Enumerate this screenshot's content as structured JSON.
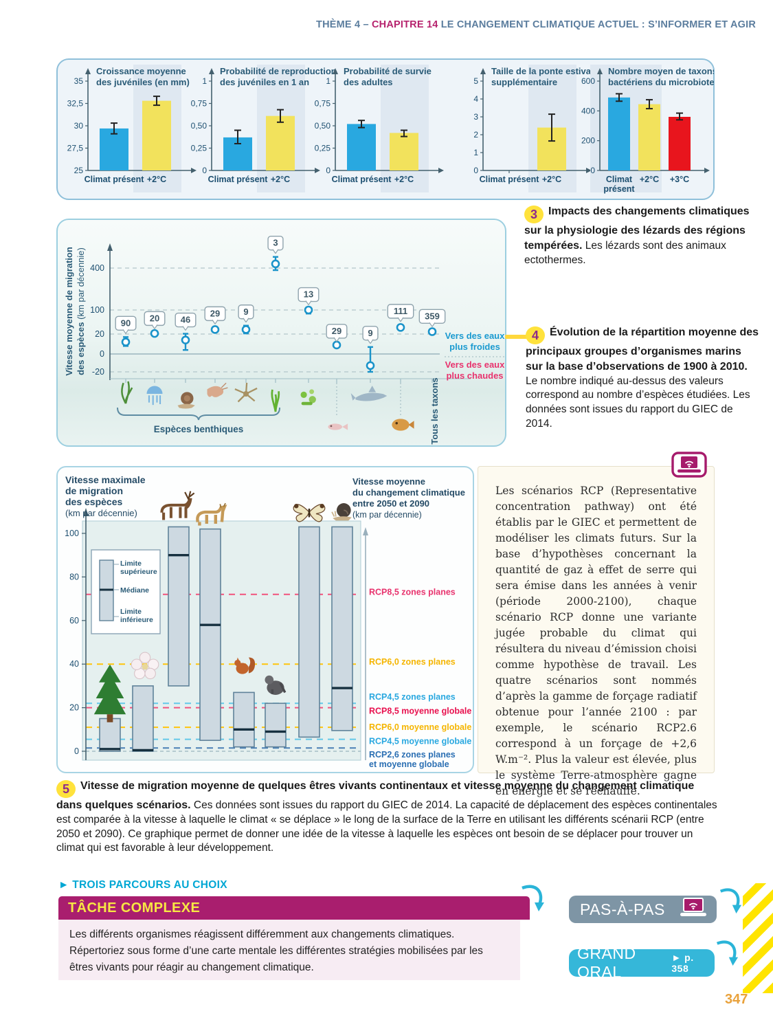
{
  "page": {
    "page_number": "347"
  },
  "header": {
    "theme": "THÈME 4 – ",
    "chapter": "CHAPITRE 14",
    "rest": " LE CHANGEMENT CLIMATIQUE ACTUEL : S’INFORMER ET AGIR"
  },
  "doc3": {
    "number": "3",
    "bold": "Impacts des changements climatiques sur la physiologie des lézards des régions tempérées.",
    "text": " Les lézards sont des animaux ectothermes."
  },
  "doc4": {
    "number": "4",
    "bold": "Évolution de la répartition moyenne des principaux groupes d’organismes marins sur la base d’observations de 1900 à 2010.",
    "text": " Le nombre indiqué au-dessus des valeurs correspond au nombre d’espèces étudiées. Les données sont issues du rapport du GIEC de 2014."
  },
  "rcp_box": {
    "text": "Les scénarios RCP (Representative concentration pathway) ont été établis par le GIEC et permettent de modéliser les climats futurs. Sur la base d’hypothèses concernant la quantité de gaz à effet de serre qui sera émise dans les années à venir (période 2000-2100), chaque scénario RCP donne une variante jugée probable du climat qui résultera du niveau d’émission choisi comme hypothèse de travail. Les quatre scénarios sont nommés d’après la gamme de forçage radiatif obtenue pour l’année 2100 : par exemple, le scénario RCP2.6 correspond à un forçage de +2,6 W.m⁻². Plus la valeur est élevée, plus le système Terre-atmosphère gagne en énergie et se réchauffe."
  },
  "doc5": {
    "number": "5",
    "bold": "Vitesse de migration moyenne de quelques êtres vivants continentaux et vitesse moyenne du changement climatique dans quelques scénarios.",
    "text": " Ces données sont issues du rapport du GIEC de 2014. La capacité de déplacement des espèces continentales est comparée à la vitesse à laquelle le climat « se déplace » le long de la surface de la Terre en utilisant les différents scénarii RCP (entre 2050 et 2090). Ce graphique permet de donner une idée de la vitesse à laquelle les espèces ont besoin de se déplacer pour trouver un climat qui est favorable à leur développement."
  },
  "parcours": {
    "label": "TROIS PARCOURS AU CHOIX",
    "tache": {
      "title": "TÂCHE COMPLEXE",
      "body": "Les différents organismes réagissent différemment aux changements climatiques.\nRépertoriez sous forme d’une carte mentale les différentes stratégies mobilisées par les êtres vivants pour réagir au changement climatique."
    },
    "pas_a_pas": "PAS-À-PAS",
    "grand_oral": "GRAND ORAL",
    "grand_oral_ref": "► p. 358"
  },
  "chart_data": [
    {
      "id": "lizard-juvenile-growth",
      "type": "bar",
      "title_lines": [
        "Croissance moyenne",
        "des juvéniles (en mm)"
      ],
      "categories": [
        "Climat présent",
        "+2°C"
      ],
      "values": [
        29.7,
        32.8
      ],
      "err_low": [
        29.1,
        32.3
      ],
      "err_high": [
        30.3,
        33.3
      ],
      "bar_colors": [
        "#29a8e0",
        "#f2e25c"
      ],
      "ylim": [
        25,
        35
      ],
      "yticks": [
        {
          "v": 25,
          "label": "25"
        },
        {
          "v": 27.5,
          "label": "27,5"
        },
        {
          "v": 30,
          "label": "30"
        },
        {
          "v": 32.5,
          "label": "32,5"
        },
        {
          "v": 35,
          "label": "35"
        }
      ]
    },
    {
      "id": "lizard-reproduction-probability",
      "type": "bar",
      "title_lines": [
        "Probabilité de reproduction",
        "des juvéniles en 1 an"
      ],
      "categories": [
        "Climat présent",
        "+2°C"
      ],
      "values": [
        0.37,
        0.61
      ],
      "err_low": [
        0.3,
        0.54
      ],
      "err_high": [
        0.45,
        0.68
      ],
      "bar_colors": [
        "#29a8e0",
        "#f2e25c"
      ],
      "ylim": [
        0,
        1
      ],
      "yticks": [
        {
          "v": 0,
          "label": "0"
        },
        {
          "v": 0.25,
          "label": "0,25"
        },
        {
          "v": 0.5,
          "label": "0,50"
        },
        {
          "v": 0.75,
          "label": "0,75"
        },
        {
          "v": 1,
          "label": "1"
        }
      ]
    },
    {
      "id": "lizard-adult-survival",
      "type": "bar",
      "title_lines": [
        "Probabilité de survie",
        "des adultes"
      ],
      "categories": [
        "Climat présent",
        "+2°C"
      ],
      "values": [
        0.52,
        0.42
      ],
      "err_low": [
        0.48,
        0.38
      ],
      "err_high": [
        0.56,
        0.45
      ],
      "bar_colors": [
        "#29a8e0",
        "#f2e25c"
      ],
      "ylim": [
        0,
        1
      ],
      "yticks": [
        {
          "v": 0,
          "label": "0"
        },
        {
          "v": 0.25,
          "label": "0,25"
        },
        {
          "v": 0.5,
          "label": "0,50"
        },
        {
          "v": 0.75,
          "label": "0,75"
        },
        {
          "v": 1,
          "label": "1"
        }
      ]
    },
    {
      "id": "lizard-extra-summer-clutch",
      "type": "bar",
      "title_lines": [
        "Taille de la ponte estivale",
        "supplémentaire"
      ],
      "categories": [
        "Climat présent",
        "+2°C"
      ],
      "values": [
        null,
        2.4
      ],
      "err_low": [
        null,
        1.65
      ],
      "err_high": [
        null,
        3.15
      ],
      "bar_colors": [
        "#29a8e0",
        "#f2e25c"
      ],
      "ylim": [
        0,
        5
      ],
      "yticks": [
        {
          "v": 0,
          "label": "0"
        },
        {
          "v": 1,
          "label": "1"
        },
        {
          "v": 2,
          "label": "2"
        },
        {
          "v": 3,
          "label": "3"
        },
        {
          "v": 4,
          "label": "4"
        },
        {
          "v": 5,
          "label": "5"
        }
      ]
    },
    {
      "id": "microbiome-bacterial-taxa",
      "type": "bar",
      "title_lines": [
        "Nombre moyen de taxons",
        "bactériens du microbiote"
      ],
      "categories": [
        "Climat\nprésent",
        "+2°C",
        "+3°C"
      ],
      "values": [
        490,
        445,
        360
      ],
      "err_low": [
        465,
        415,
        340
      ],
      "err_high": [
        515,
        475,
        385
      ],
      "bar_colors": [
        "#29a8e0",
        "#f2e25c",
        "#e8151d"
      ],
      "ylim": [
        0,
        600
      ],
      "yticks": [
        {
          "v": 0,
          "label": "0"
        },
        {
          "v": 200,
          "label": "200"
        },
        {
          "v": 400,
          "label": "400"
        },
        {
          "v": 600,
          "label": "600"
        }
      ]
    },
    {
      "id": "marine-migration-speed",
      "type": "scatter",
      "ylabel_lines": [
        "Vitesse moyenne de migration",
        "des espèces"
      ],
      "ylabel_unit": "(km par décennie)",
      "yticks": [
        {
          "v": 400,
          "label": "400"
        },
        {
          "v": 100,
          "label": "100"
        },
        {
          "v": 20,
          "label": "20"
        },
        {
          "v": 0,
          "label": "0"
        },
        {
          "v": -20,
          "label": "-20"
        }
      ],
      "points": [
        {
          "n": "90",
          "v": 12,
          "lo": 8,
          "hi": 17,
          "icon": "macroalgae"
        },
        {
          "n": "20",
          "v": 22,
          "lo": 18,
          "hi": 26,
          "icon": "jellyfish"
        },
        {
          "n": "46",
          "v": 14,
          "lo": 4,
          "hi": 21,
          "icon": "snail"
        },
        {
          "n": "29",
          "v": 35,
          "lo": 28,
          "hi": 42,
          "icon": "shrimp"
        },
        {
          "n": "9",
          "v": 35,
          "lo": 22,
          "hi": 48,
          "icon": "brittle-star"
        },
        {
          "n": "3",
          "v": 430,
          "lo": 385,
          "hi": 480,
          "icon": "seagrass"
        },
        {
          "n": "13",
          "v": 100,
          "lo": 88,
          "hi": 112,
          "icon": "phytoplankton"
        },
        {
          "n": "29",
          "v": 9,
          "lo": 9,
          "hi": 9,
          "icon": "fish-larva"
        },
        {
          "n": "9",
          "v": -13,
          "lo": -20,
          "hi": 7,
          "icon": "shark"
        },
        {
          "n": "111",
          "v": 42,
          "lo": 36,
          "hi": 50,
          "icon": "bony-fish"
        },
        {
          "n": "359",
          "v": 28,
          "lo": 24,
          "hi": 33,
          "icon": "all-taxa"
        }
      ],
      "benthic_group_label": "Espèces benthiques",
      "all_taxa_label": "Tous les taxons",
      "direction_labels": {
        "cold_lines": [
          "Vers des eaux",
          "plus froides"
        ],
        "warm_lines": [
          "Vers des eaux",
          "plus chaudes"
        ]
      }
    },
    {
      "id": "continental-migration-vs-climate-velocity",
      "type": "range-bar",
      "left_title_lines": [
        "Vitesse maximale",
        "de migration",
        "des espèces"
      ],
      "left_title_unit": "(km par décennie)",
      "right_title_lines": [
        "Vitesse moyenne",
        "du changement climatique",
        "entre 2050 et 2090"
      ],
      "right_title_unit": "(km par décennie)",
      "yticks": [
        0,
        20,
        40,
        60,
        80,
        100
      ],
      "legend": {
        "upper": "Limite supérieure",
        "median": "Médiane",
        "lower": "Limite inférieure"
      },
      "bars": [
        {
          "icon": "conifer-tree",
          "low": 0,
          "high": 15,
          "median": 1
        },
        {
          "icon": "flower",
          "low": 0,
          "high": 30,
          "median": 0.5
        },
        {
          "icon": "deer",
          "low": 30,
          "high": 103,
          "median": 90
        },
        {
          "icon": "lynx",
          "low": 5,
          "high": 102,
          "median": 58
        },
        {
          "icon": "squirrel",
          "low": 2,
          "high": 27,
          "median": 10
        },
        {
          "icon": "gorilla",
          "low": 2,
          "high": 22,
          "median": 9
        },
        {
          "icon": "butterfly",
          "low": 6.5,
          "high": 103,
          "median": null
        },
        {
          "icon": "land-snail",
          "low": 9.5,
          "high": 103,
          "median": 29
        }
      ],
      "rcp_lines": [
        {
          "label_lines": [
            "RCP8,5 zones planes"
          ],
          "value": 72,
          "line_color": "#f2527c",
          "text_color": "#e8326d",
          "label_at": 73
        },
        {
          "label_lines": [
            "RCP6,0 zones planes"
          ],
          "value": 40,
          "line_color": "#ffc40c",
          "text_color": "#f5b500",
          "label_at": 41
        },
        {
          "label_lines": [
            "RCP4,5 zones planes"
          ],
          "value": 22,
          "line_color": "#63c8e8",
          "text_color": "#29a8e0",
          "label_at": 25
        },
        {
          "label_lines": [
            "RCP8,5 moyenne globale"
          ],
          "value": 20,
          "line_color": "#f2527c",
          "text_color": "#e8104e",
          "label_at": 18.5
        },
        {
          "label_lines": [
            "RCP6,0 moyenne globale"
          ],
          "value": 11,
          "line_color": "#ffc40c",
          "text_color": "#f5b500",
          "label_at": 11
        },
        {
          "label_lines": [
            "RCP4,5 moyenne globale"
          ],
          "value": 5.5,
          "line_color": "#63c8e8",
          "text_color": "#29a8e0",
          "label_at": 4.5
        },
        {
          "label_lines": [
            "RCP2,6 zones planes",
            "et moyenne globale"
          ],
          "value": 1.5,
          "line_color": "#4a7fb5",
          "text_color": "#2b6fb3",
          "label_at": -1.5
        }
      ]
    }
  ]
}
